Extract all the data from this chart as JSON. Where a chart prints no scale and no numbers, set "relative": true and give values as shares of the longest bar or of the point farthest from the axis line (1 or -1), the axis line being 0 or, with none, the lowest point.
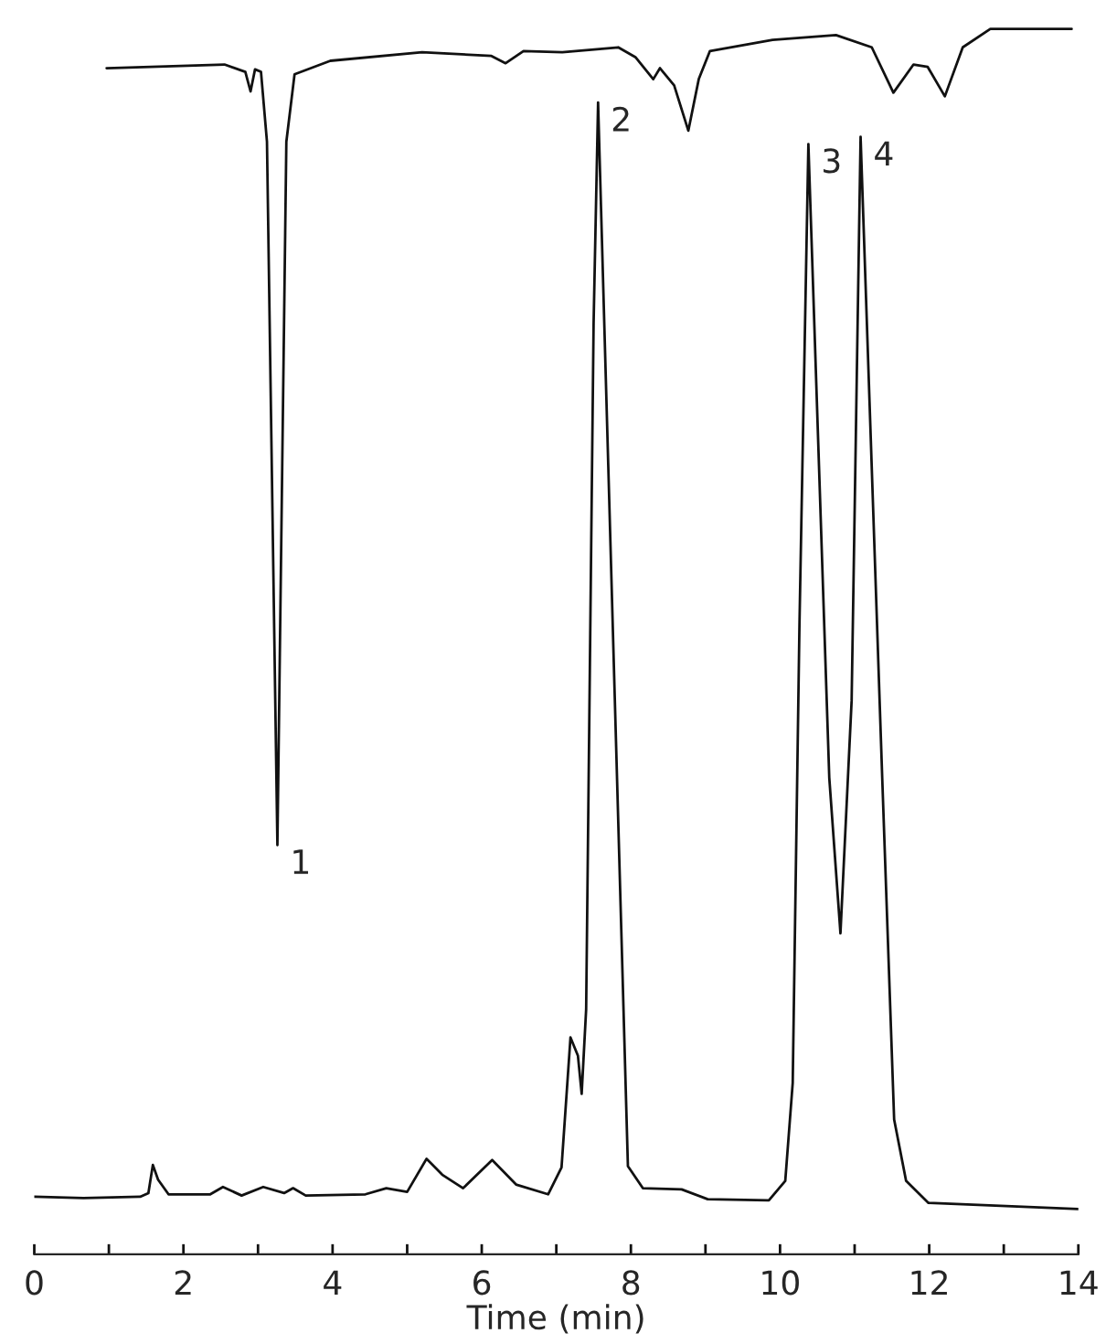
{
  "chart_data": {
    "type": "line",
    "relative": true,
    "xlabel": "Time (min)",
    "xlim": [
      0,
      14
    ],
    "xticks": [
      0,
      {
        "value": 1,
        "label": null
      },
      2,
      {
        "value": 3,
        "label": null
      },
      4,
      {
        "value": 5,
        "label": null
      },
      6,
      {
        "value": 7,
        "label": null
      },
      8,
      {
        "value": 9,
        "label": null
      },
      10,
      {
        "value": 11,
        "label": null
      },
      12,
      {
        "value": 13,
        "label": null
      },
      14
    ],
    "grid": false,
    "legend": false,
    "marker": "none",
    "line_style": "solid",
    "series": [
      {
        "color": "#111111",
        "x": [
          0.97,
          2.55,
          2.83,
          2.9,
          2.96,
          3.04,
          3.12,
          3.26,
          3.38,
          3.49,
          3.97,
          5.2,
          6.13,
          6.32,
          6.56,
          7.08,
          7.83,
          8.06,
          8.3,
          8.39,
          8.58,
          8.77,
          8.91,
          9.06,
          9.9,
          10.75,
          11.23,
          11.52,
          11.79,
          11.98,
          12.21,
          12.45,
          12.82,
          13.91
        ],
        "values": [
          0.968,
          0.971,
          0.965,
          0.949,
          0.967,
          0.965,
          0.908,
          0.334,
          0.908,
          0.963,
          0.974,
          0.981,
          0.978,
          0.972,
          0.982,
          0.981,
          0.985,
          0.977,
          0.959,
          0.968,
          0.954,
          0.917,
          0.959,
          0.982,
          0.991,
          0.995,
          0.985,
          0.948,
          0.971,
          0.969,
          0.945,
          0.985,
          1.0,
          1.0
        ]
      },
      {
        "color": "#111111",
        "x": [
          0,
          0.66,
          1.42,
          1.53,
          1.59,
          1.66,
          1.8,
          2.36,
          2.53,
          2.78,
          3.07,
          3.35,
          3.47,
          3.64,
          4.44,
          4.72,
          5.0,
          5.26,
          5.47,
          5.75,
          6.14,
          6.46,
          6.89,
          7.07,
          7.19,
          7.29,
          7.34,
          7.4,
          7.5,
          7.56,
          7.96,
          8.16,
          8.68,
          9.03,
          9.85,
          10.07,
          10.17,
          10.26,
          10.38,
          10.66,
          10.81,
          10.96,
          11.08,
          11.37,
          11.53,
          11.69,
          11.99,
          14.0
        ],
        "values": [
          0.047,
          0.046,
          0.047,
          0.05,
          0.073,
          0.061,
          0.049,
          0.049,
          0.055,
          0.048,
          0.055,
          0.05,
          0.054,
          0.048,
          0.049,
          0.054,
          0.051,
          0.078,
          0.065,
          0.054,
          0.077,
          0.057,
          0.049,
          0.071,
          0.177,
          0.162,
          0.131,
          0.2,
          0.76,
          0.94,
          0.072,
          0.054,
          0.053,
          0.045,
          0.044,
          0.06,
          0.14,
          0.513,
          0.906,
          0.389,
          0.262,
          0.452,
          0.912,
          0.389,
          0.11,
          0.06,
          0.042,
          0.037
        ]
      }
    ],
    "annotations": [
      {
        "text": "1",
        "x": 3.26,
        "y": 0.334
      },
      {
        "text": "2",
        "x": 7.56,
        "y": 0.94
      },
      {
        "text": "3",
        "x": 10.38,
        "y": 0.906
      },
      {
        "text": "4",
        "x": 11.08,
        "y": 0.912
      }
    ]
  }
}
